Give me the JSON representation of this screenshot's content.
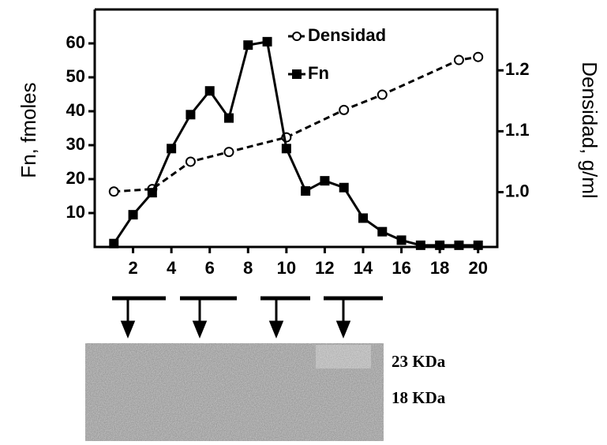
{
  "chart_data": {
    "type": "line",
    "xlim": [
      0,
      21
    ],
    "xticks": [
      2,
      4,
      6,
      8,
      10,
      12,
      14,
      16,
      18,
      20
    ],
    "ylim": [
      0,
      70
    ],
    "yticks": [
      10,
      20,
      30,
      40,
      50,
      60
    ],
    "y2lim": [
      0.91,
      1.3
    ],
    "y2ticks": [
      {
        "value": 1.0,
        "label": "1.0"
      },
      {
        "value": 1.1,
        "label": "1.1"
      },
      {
        "value": 1.2,
        "label": "1.2"
      }
    ],
    "ylabel": "Fn, fmoles",
    "y2label": "Densidad, g/ml",
    "legend": "upper-center",
    "series": [
      {
        "name": "Densidad",
        "color": "#000000",
        "marker": "open-circle",
        "dashed": true,
        "axis": "y2",
        "x": [
          1,
          3,
          5,
          7,
          10,
          13,
          15,
          19,
          20
        ],
        "values": [
          1.001,
          1.005,
          1.05,
          1.066,
          1.09,
          1.135,
          1.16,
          1.217,
          1.222
        ]
      },
      {
        "name": "Fn",
        "color": "#000000",
        "marker": "filled-square",
        "dashed": false,
        "x": [
          1,
          2,
          3,
          4,
          5,
          6,
          7,
          8,
          9,
          10,
          11,
          12,
          13,
          14,
          15,
          16,
          17,
          18,
          19,
          20
        ],
        "values": [
          1,
          9.5,
          16,
          29,
          39,
          46,
          38,
          59.5,
          60.5,
          29,
          16.5,
          19.5,
          17.5,
          8.5,
          4.5,
          2,
          0.5,
          0.5,
          0.5,
          0.5
        ]
      }
    ]
  },
  "gel_labels": [
    "23 KDa",
    "18 KDa"
  ]
}
